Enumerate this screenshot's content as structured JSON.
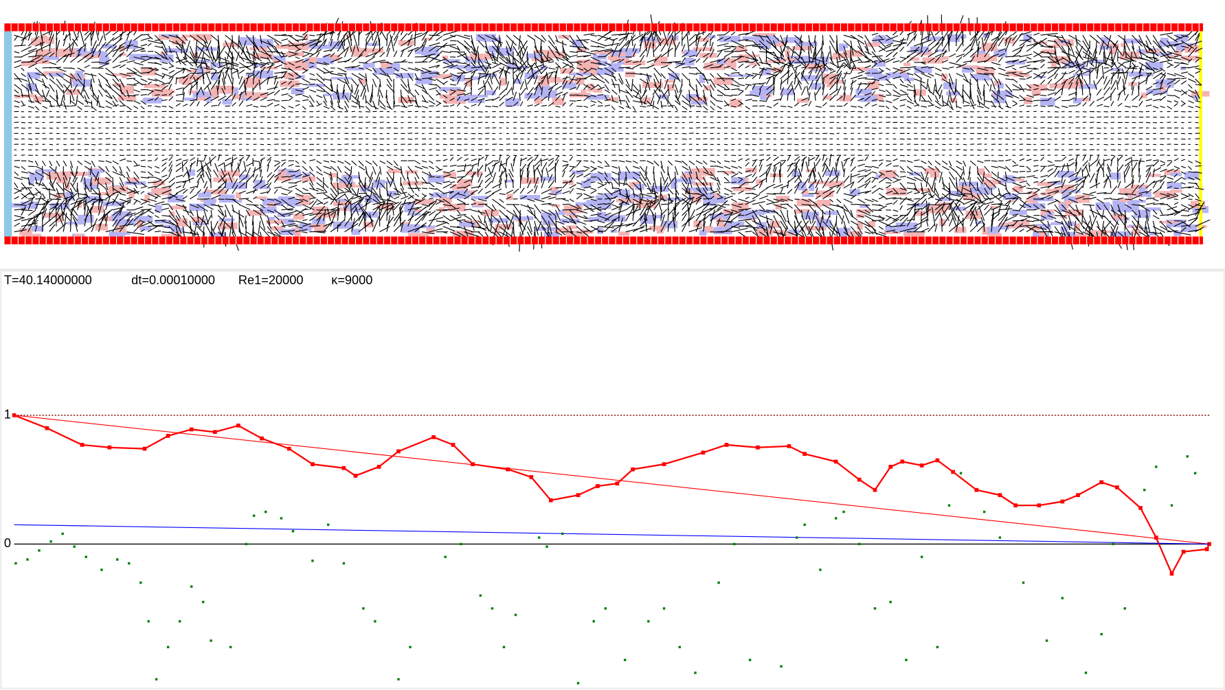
{
  "status": {
    "time": "T=40.14000000",
    "dt": "dt=0.00010000",
    "reynolds": "Re1=20000",
    "kappa": "κ=9000"
  },
  "chart_data": {
    "type": "line",
    "xlim": [
      0,
      1530
    ],
    "ylim": [
      -1.1,
      2.0
    ],
    "yticks": [
      0,
      1
    ],
    "grid": true,
    "grid_colors": [
      "#000000",
      "#800000"
    ],
    "series": [
      {
        "color": "#ff0000",
        "style": "markers",
        "x": [
          0,
          42,
          87,
          122,
          167,
          197,
          227,
          257,
          287,
          317,
          352,
          382,
          422,
          437,
          467,
          492,
          537,
          562,
          587,
          632,
          662,
          687,
          722,
          747,
          772,
          792,
          832,
          882,
          912,
          952,
          992,
          1012,
          1052,
          1082,
          1102,
          1122,
          1137,
          1162,
          1182,
          1202,
          1232,
          1262,
          1282,
          1312,
          1342,
          1362,
          1392,
          1412,
          1442,
          1462,
          1482,
          1497,
          1527,
          1530
        ],
        "values": [
          1.0,
          0.9,
          0.77,
          0.75,
          0.74,
          0.84,
          0.89,
          0.87,
          0.92,
          0.82,
          0.74,
          0.62,
          0.59,
          0.53,
          0.6,
          0.72,
          0.83,
          0.77,
          0.62,
          0.58,
          0.52,
          0.34,
          0.38,
          0.45,
          0.47,
          0.58,
          0.62,
          0.71,
          0.77,
          0.75,
          0.76,
          0.7,
          0.64,
          0.5,
          0.42,
          0.6,
          0.64,
          0.61,
          0.65,
          0.56,
          0.42,
          0.38,
          0.3,
          0.3,
          0.33,
          0.38,
          0.48,
          0.44,
          0.28,
          0.05,
          -0.23,
          -0.06,
          -0.04,
          0.0
        ]
      },
      {
        "color": "#ff0000",
        "style": "line",
        "x": [
          0,
          1530
        ],
        "values": [
          1,
          0
        ]
      },
      {
        "color": "#0000ff",
        "style": "line",
        "x": [
          0,
          1530
        ],
        "values": [
          0.15,
          0
        ]
      },
      {
        "color": "#008000",
        "style": "dots",
        "x": [
          2,
          17,
          32,
          47,
          62,
          77,
          92,
          112,
          132,
          147,
          162,
          172,
          182,
          197,
          212,
          227,
          242,
          252,
          277,
          297,
          307,
          322,
          342,
          357,
          382,
          402,
          422,
          447,
          462,
          492,
          507,
          552,
          572,
          597,
          612,
          627,
          642,
          672,
          682,
          702,
          722,
          742,
          757,
          782,
          812,
          832,
          852,
          872,
          902,
          922,
          942,
          982,
          1002,
          1012,
          1032,
          1052,
          1062,
          1082,
          1102,
          1122,
          1142,
          1162,
          1182,
          1197,
          1212,
          1242,
          1262,
          1292,
          1322,
          1342,
          1372,
          1392,
          1407,
          1422,
          1447,
          1462,
          1482,
          1502,
          1512
        ],
        "values": [
          -0.15,
          -0.12,
          -0.05,
          0.02,
          0.08,
          -0.02,
          -0.1,
          -0.2,
          -0.12,
          -0.15,
          -0.3,
          -0.6,
          -1.05,
          -0.8,
          -0.6,
          -0.33,
          -0.45,
          -0.75,
          -0.8,
          0.0,
          0.22,
          0.25,
          0.2,
          0.1,
          -0.13,
          0.15,
          -0.15,
          -0.5,
          -0.6,
          -1.05,
          -0.8,
          -0.1,
          0.0,
          -0.4,
          -0.5,
          -0.8,
          -0.55,
          0.05,
          -0.02,
          0.08,
          -1.08,
          -0.6,
          -0.5,
          -0.9,
          -0.6,
          -0.5,
          -0.8,
          -1.0,
          -0.3,
          0.0,
          -0.9,
          -0.95,
          0.05,
          0.15,
          -0.2,
          0.2,
          0.25,
          0.0,
          -0.5,
          -0.45,
          -0.9,
          -0.1,
          -0.8,
          0.3,
          0.55,
          0.25,
          0.05,
          -0.3,
          -0.75,
          -0.42,
          -1.0,
          -0.7,
          0.0,
          -0.5,
          0.42,
          0.6,
          0.3,
          0.68,
          0.55
        ]
      }
    ]
  }
}
